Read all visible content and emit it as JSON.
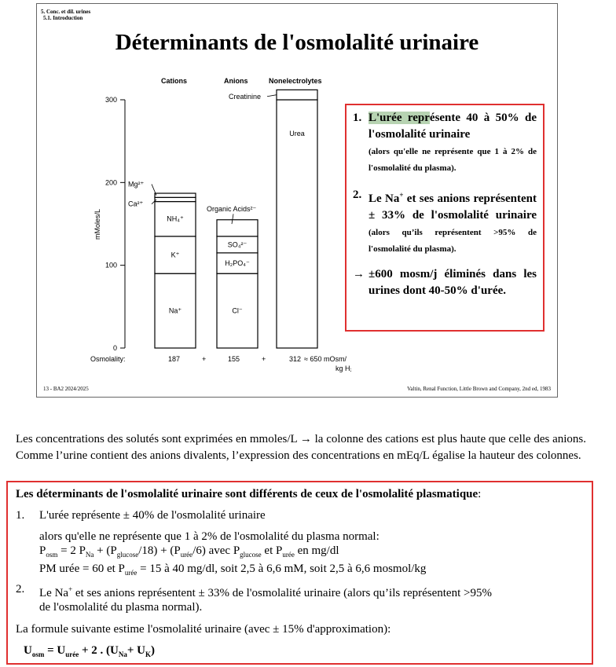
{
  "slide": {
    "section": "5. Conc. et dil. urines",
    "subsection": "5.1. Introduction",
    "title": "Déterminants de l'osmolalité urinaire",
    "footer_left": "13 - BA2 2024/2025",
    "footer_right": "Valtin, Renal Function, Little Brown and Company, 2nd ed, 1983"
  },
  "chart_data": {
    "type": "bar",
    "stacked": true,
    "ylabel": "mMoles/L",
    "yticks": [
      0,
      100,
      200,
      300
    ],
    "ylim": [
      0,
      300
    ],
    "column_headers": [
      "Cations",
      "Anions",
      "Nonelectrolytes"
    ],
    "columns": [
      {
        "name": "Cations",
        "segments": [
          {
            "label": "Na⁺",
            "from": 0,
            "to": 90
          },
          {
            "label": "K⁺",
            "from": 90,
            "to": 135
          },
          {
            "label": "NH₄⁺",
            "from": 135,
            "to": 177
          },
          {
            "label": "Ca²⁺",
            "from": 177,
            "to": 182
          },
          {
            "label": "Mg²⁺",
            "from": 182,
            "to": 187
          }
        ],
        "osmolality": "187"
      },
      {
        "name": "Anions",
        "segments": [
          {
            "label": "Cl⁻",
            "from": 0,
            "to": 90
          },
          {
            "label": "H₂PO₄⁻",
            "from": 90,
            "to": 115
          },
          {
            "label": "SO₄²⁻",
            "from": 115,
            "to": 135
          },
          {
            "label": "",
            "from": 135,
            "to": 155
          }
        ],
        "osmolality": "155",
        "annotation": "Organic Acids²⁻"
      },
      {
        "name": "Nonelectrolytes",
        "segments": [
          {
            "label": "Urea",
            "from": 0,
            "to": 300
          },
          {
            "label": "",
            "from": 300,
            "to": 312
          }
        ],
        "osmolality": "312",
        "annotation": "Creatinine"
      }
    ],
    "osmolality_label": "Osmolality:",
    "plus": "+",
    "approx": "≈ 650 mOsm/",
    "unit_line2": "kg H₂O"
  },
  "callout": {
    "item1_num": "1.",
    "item1_hl": "L'urée repr",
    "item1_rest": "ésente 40 à 50% de l'osmolalité urinaire",
    "item1_small": "(alors qu'elle ne représente que 1 à 2% de l'osmolalité du plasma).",
    "item2_num": "2.",
    "item2_a": "Le Na",
    "item2_sup": "+",
    "item2_b": " et ses anions représentent ± 33% de l'osmolalité urinaire",
    "item2_small_a": "(alors qu’ils représentent >95% de l'osmolalité du plasma).",
    "arrow": "→",
    "conclusion": "±600 mosm/j éliminés dans les urines dont 40-50% d'urée."
  },
  "para": "Les concentrations des solutés sont exprimées en mmoles/L → la colonne des cations est plus haute que celle des anions. Comme l’urine contient des anions divalents, l’expression des concentrations en mEq/L égalise la hauteur des colonnes.",
  "box": {
    "heading": "Les déterminants de l'osmolalité urinaire sont différents de ceux de l'osmolalité plasmatique",
    "heading_colon": ":",
    "n1": "1.",
    "l1": "L'urée représente ± 40% de l'osmolalité urinaire",
    "l2": "alors qu'elle ne représente que 1 à 2% de l'osmolalité du plasma normal:",
    "n2": "2.",
    "l5a": "Le Na",
    "l5b": " et ses anions représentent ± 33% de l'osmolalité urinaire (alors qu’ils représentent >95%",
    "l6": "de l'osmolalité du plasma normal).",
    "l7": "La formule suivante estime l'osmolalité urinaire (avec ± 15% d'approximation):"
  }
}
